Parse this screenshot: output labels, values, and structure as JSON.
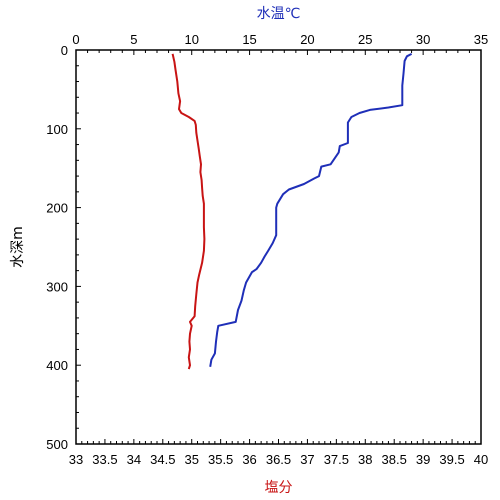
{
  "chart_data": {
    "type": "line",
    "title": "",
    "y_axis": {
      "label": "水深m",
      "ylim": [
        0,
        500
      ],
      "inverted": true,
      "ticks": [
        "0",
        "100",
        "200",
        "300",
        "400",
        "500"
      ]
    },
    "top_axis": {
      "label": "水温℃",
      "xlim": [
        0,
        35
      ],
      "ticks": [
        "0",
        "5",
        "10",
        "15",
        "20",
        "25",
        "30",
        "35"
      ],
      "color": "#1f2fb8"
    },
    "bottom_axis": {
      "label": "塩分",
      "xlim": [
        33,
        40
      ],
      "ticks": [
        "33",
        "33.5",
        "34",
        "34.5",
        "35",
        "35.5",
        "36",
        "36.5",
        "37",
        "37.5",
        "38",
        "38.5",
        "39",
        "39.5",
        "40"
      ],
      "color": "#c81414"
    },
    "grid": false,
    "legend": "none",
    "series": [
      {
        "axis": "top",
        "color": "#1f2fb8",
        "points": [
          [
            29.0,
            5
          ],
          [
            28.6,
            8
          ],
          [
            28.4,
            14
          ],
          [
            28.3,
            30
          ],
          [
            28.2,
            45
          ],
          [
            28.2,
            60
          ],
          [
            28.2,
            70
          ],
          [
            27.0,
            73
          ],
          [
            25.4,
            76
          ],
          [
            24.5,
            80
          ],
          [
            23.8,
            85
          ],
          [
            23.5,
            92
          ],
          [
            23.5,
            100
          ],
          [
            23.5,
            118
          ],
          [
            22.8,
            122
          ],
          [
            22.7,
            130
          ],
          [
            22.0,
            145
          ],
          [
            21.2,
            148
          ],
          [
            21.0,
            160
          ],
          [
            20.6,
            163
          ],
          [
            19.7,
            170
          ],
          [
            18.4,
            177
          ],
          [
            17.9,
            183
          ],
          [
            17.4,
            195
          ],
          [
            17.3,
            200
          ],
          [
            17.3,
            212
          ],
          [
            17.3,
            235
          ],
          [
            17.0,
            245
          ],
          [
            16.6,
            255
          ],
          [
            16.3,
            262
          ],
          [
            16.0,
            270
          ],
          [
            15.6,
            278
          ],
          [
            15.2,
            282
          ],
          [
            14.7,
            295
          ],
          [
            14.5,
            305
          ],
          [
            14.3,
            318
          ],
          [
            14.0,
            330
          ],
          [
            13.8,
            345
          ],
          [
            12.3,
            350
          ],
          [
            12.2,
            358
          ],
          [
            12.1,
            370
          ],
          [
            12.0,
            385
          ],
          [
            11.7,
            393
          ],
          [
            11.6,
            402
          ]
        ]
      },
      {
        "axis": "bottom",
        "color": "#c81414",
        "points": [
          [
            34.67,
            5
          ],
          [
            34.7,
            15
          ],
          [
            34.72,
            25
          ],
          [
            34.75,
            40
          ],
          [
            34.77,
            55
          ],
          [
            34.8,
            65
          ],
          [
            34.78,
            75
          ],
          [
            34.82,
            80
          ],
          [
            34.95,
            85
          ],
          [
            35.05,
            90
          ],
          [
            35.07,
            95
          ],
          [
            35.08,
            105
          ],
          [
            35.1,
            115
          ],
          [
            35.12,
            125
          ],
          [
            35.14,
            135
          ],
          [
            35.16,
            145
          ],
          [
            35.15,
            155
          ],
          [
            35.17,
            165
          ],
          [
            35.18,
            175
          ],
          [
            35.19,
            185
          ],
          [
            35.21,
            195
          ],
          [
            35.21,
            210
          ],
          [
            35.21,
            225
          ],
          [
            35.22,
            240
          ],
          [
            35.21,
            255
          ],
          [
            35.18,
            270
          ],
          [
            35.13,
            285
          ],
          [
            35.1,
            295
          ],
          [
            35.08,
            310
          ],
          [
            35.06,
            325
          ],
          [
            35.05,
            338
          ],
          [
            34.97,
            345
          ],
          [
            35.0,
            350
          ],
          [
            34.97,
            360
          ],
          [
            34.96,
            370
          ],
          [
            34.97,
            380
          ],
          [
            34.95,
            390
          ],
          [
            34.97,
            400
          ],
          [
            34.95,
            405
          ]
        ]
      }
    ]
  }
}
